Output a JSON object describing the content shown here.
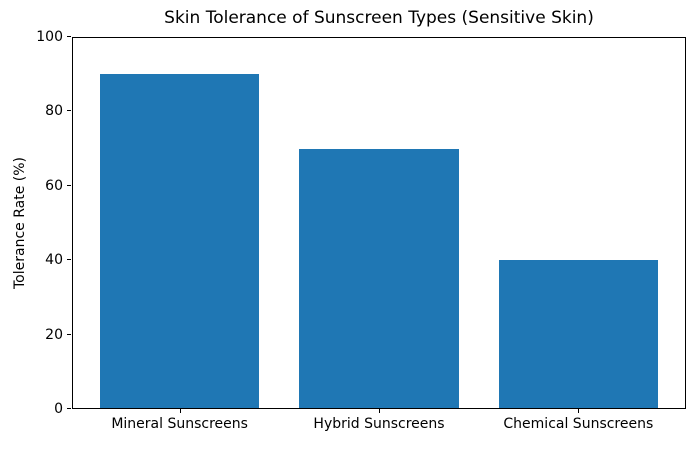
{
  "chart_data": {
    "type": "bar",
    "title": "Skin Tolerance of Sunscreen Types (Sensitive Skin)",
    "categories": [
      "Mineral Sunscreens",
      "Hybrid Sunscreens",
      "Chemical Sunscreens"
    ],
    "values": [
      90,
      70,
      40
    ],
    "xlabel": "",
    "ylabel": "Tolerance Rate (%)",
    "ylim": [
      0,
      100
    ],
    "yticks": [
      0,
      20,
      40,
      60,
      80,
      100
    ],
    "bar_color": "#1f77b4",
    "grid": false,
    "legend_position": "none"
  },
  "colors": {
    "bar": "#1f77b4",
    "text": "#000000",
    "spine": "#000000",
    "background": "#ffffff"
  }
}
